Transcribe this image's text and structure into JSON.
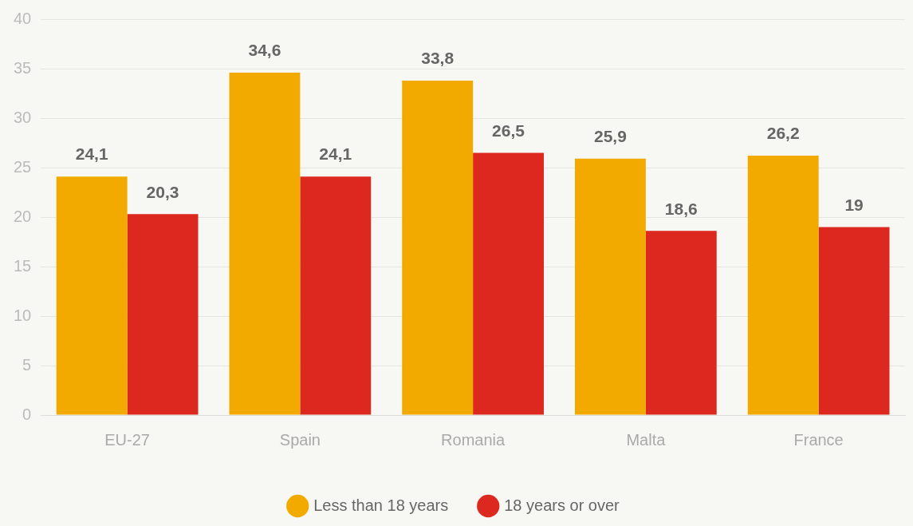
{
  "chart_data": {
    "type": "bar",
    "categories": [
      "EU-27",
      "Spain",
      "Romania",
      "Malta",
      "France"
    ],
    "series": [
      {
        "name": "Less than 18 years",
        "color": "#f2aa00",
        "values": [
          24.1,
          34.6,
          33.8,
          25.9,
          26.2
        ],
        "value_labels": [
          "24,1",
          "34,6",
          "33,8",
          "25,9",
          "26,2"
        ]
      },
      {
        "name": "18 years or over",
        "color": "#dc281e",
        "values": [
          20.3,
          24.1,
          26.5,
          18.6,
          19
        ],
        "value_labels": [
          "20,3",
          "24,1",
          "26,5",
          "18,6",
          "19"
        ]
      }
    ],
    "ylim": [
      0,
      40
    ],
    "yticks": [
      0,
      5,
      10,
      15,
      20,
      25,
      30,
      35,
      40
    ],
    "grid": "y",
    "legend": "bottom"
  }
}
